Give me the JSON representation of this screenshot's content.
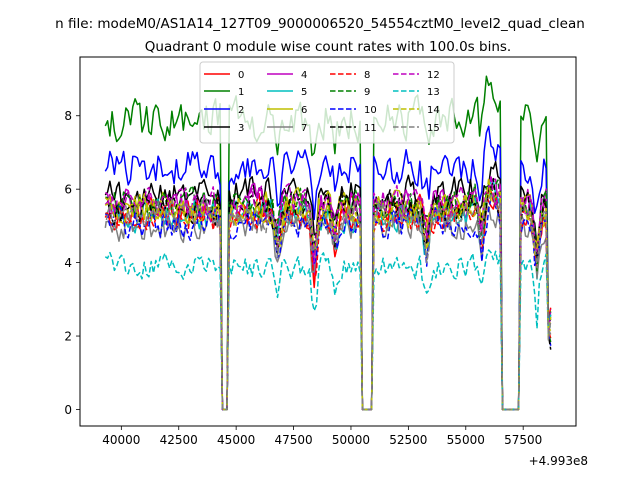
{
  "chart_data": {
    "type": "line",
    "suptitle": "n file: modeM0/AS1A14_127T09_9000006520_54554cztM0_level2_quad_clean",
    "title": "Quadrant 0 module wise count rates with 100.0s bins.",
    "xlabel": "",
    "ylabel": "",
    "x_offset_label": "+4.993e8",
    "xlim": [
      38200,
      59800
    ],
    "ylim": [
      -0.45,
      9.6
    ],
    "x_ticks": [
      40000,
      42500,
      45000,
      47500,
      50000,
      52500,
      55000,
      57500
    ],
    "x_tick_labels": [
      "40000",
      "42500",
      "45000",
      "47500",
      "50000",
      "52500",
      "55000",
      "57500"
    ],
    "y_ticks": [
      0,
      2,
      4,
      6,
      8
    ],
    "y_tick_labels": [
      "0",
      "2",
      "4",
      "6",
      "8"
    ],
    "grid": false,
    "legend_position": "upper center, 4 columns",
    "x_start": 39300,
    "x_end": 58700,
    "bin_size": 100,
    "gaps": [
      [
        44350,
        44650
      ],
      [
        50500,
        50900
      ],
      [
        56600,
        57300
      ]
    ],
    "series": [
      {
        "name": "0",
        "color": "#ff0000",
        "style": "solid",
        "level": 5.4,
        "noise": 0.38
      },
      {
        "name": "1",
        "color": "#008000",
        "style": "solid",
        "level": 7.9,
        "noise": 0.5
      },
      {
        "name": "2",
        "color": "#0000ff",
        "style": "solid",
        "level": 6.6,
        "noise": 0.45
      },
      {
        "name": "3",
        "color": "#000000",
        "style": "solid",
        "level": 5.9,
        "noise": 0.4
      },
      {
        "name": "4",
        "color": "#bf00bf",
        "style": "solid",
        "level": 5.6,
        "noise": 0.4
      },
      {
        "name": "5",
        "color": "#00bfbf",
        "style": "solid",
        "level": 5.3,
        "noise": 0.38
      },
      {
        "name": "6",
        "color": "#bfbf00",
        "style": "solid",
        "level": 5.5,
        "noise": 0.38
      },
      {
        "name": "7",
        "color": "#808080",
        "style": "solid",
        "level": 5.0,
        "noise": 0.38
      },
      {
        "name": "8",
        "color": "#ff0000",
        "style": "dashed",
        "level": 5.2,
        "noise": 0.38
      },
      {
        "name": "9",
        "color": "#008000",
        "style": "dashed",
        "level": 5.6,
        "noise": 0.38
      },
      {
        "name": "10",
        "color": "#0000ff",
        "style": "dashed",
        "level": 5.1,
        "noise": 0.38
      },
      {
        "name": "11",
        "color": "#000000",
        "style": "dashed",
        "level": 5.5,
        "noise": 0.4
      },
      {
        "name": "12",
        "color": "#bf00bf",
        "style": "dashed",
        "level": 5.6,
        "noise": 0.4
      },
      {
        "name": "13",
        "color": "#00bfbf",
        "style": "dashed",
        "level": 3.9,
        "noise": 0.3
      },
      {
        "name": "14",
        "color": "#bfbf00",
        "style": "dashed",
        "level": 5.4,
        "noise": 0.38
      },
      {
        "name": "15",
        "color": "#808080",
        "style": "dashed",
        "level": 5.3,
        "noise": 0.38
      }
    ]
  }
}
